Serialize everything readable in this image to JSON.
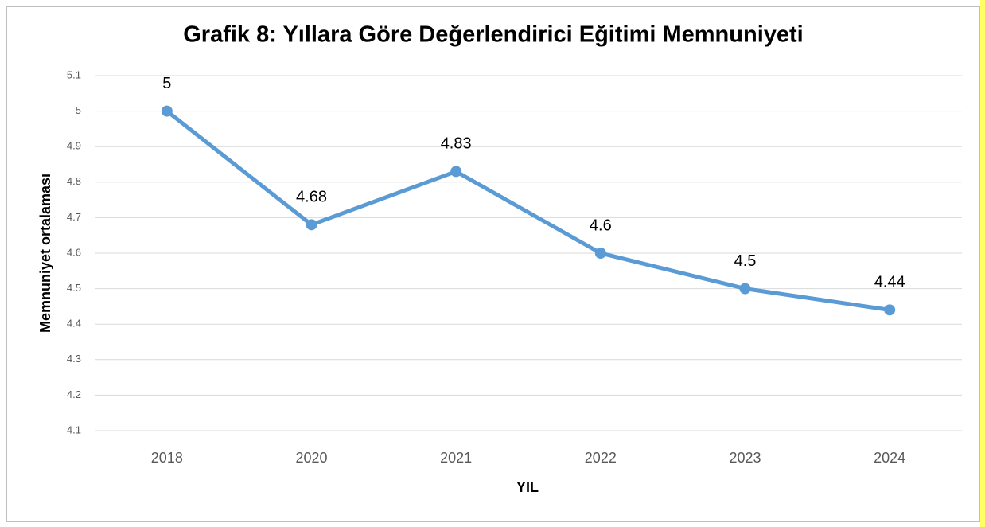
{
  "chart_data": {
    "type": "line",
    "title": "Grafik 8: Yıllara Göre Değerlendirici Eğitimi Memnuniyeti",
    "x_label": "YIL",
    "y_label": "Memnuniyet ortalaması",
    "categories": [
      "2018",
      "2020",
      "2021",
      "2022",
      "2023",
      "2024"
    ],
    "series": [
      {
        "name": "Memnuniyet ortalaması",
        "color": "#5b9bd5",
        "values": [
          5,
          4.68,
          4.83,
          4.6,
          4.5,
          4.44
        ]
      }
    ],
    "ylim": [
      4.1,
      5.1
    ],
    "yticks": [
      4.1,
      4.2,
      4.3,
      4.4,
      4.5,
      4.6,
      4.7,
      4.8,
      4.9,
      5,
      5.1
    ],
    "grid": true
  }
}
